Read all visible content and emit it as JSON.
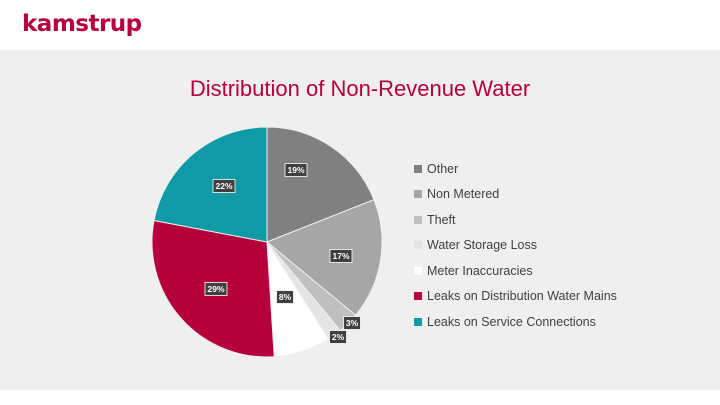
{
  "brand": {
    "logo_text": "kamstrup",
    "color": "#b5003b"
  },
  "slide": {
    "background": "#efefef"
  },
  "chart_data": {
    "type": "pie",
    "title": "Distribution of Non-Revenue Water",
    "legend_position": "right",
    "slices": [
      {
        "name": "Other",
        "value": 19,
        "label": "19%",
        "color": "#808080"
      },
      {
        "name": "Non Metered",
        "value": 17,
        "label": "17%",
        "color": "#a6a6a6"
      },
      {
        "name": "Theft",
        "value": 3,
        "label": "3%",
        "color": "#c0c0c0"
      },
      {
        "name": "Water Storage Loss",
        "value": 2,
        "label": "2%",
        "color": "#e4e4e4"
      },
      {
        "name": "Meter Inaccuracies",
        "value": 8,
        "label": "8%",
        "color": "#ffffff"
      },
      {
        "name": "Leaks on Distribution Water Mains",
        "value": 29,
        "label": "29%",
        "color": "#b5003b"
      },
      {
        "name": "Leaks on Service Connections",
        "value": 22,
        "label": "22%",
        "color": "#0f9aa5"
      }
    ]
  }
}
